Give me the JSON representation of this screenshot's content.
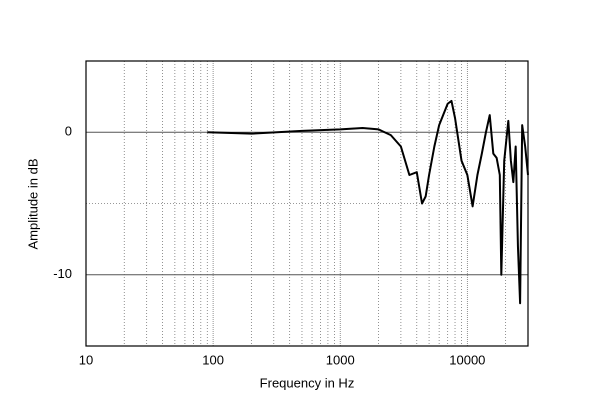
{
  "chart_data": {
    "type": "line",
    "xlabel": "Frequency in Hz",
    "ylabel": "Amplitude in dB",
    "xscale": "log",
    "xlim": [
      10,
      30000
    ],
    "ylim": [
      -15,
      5
    ],
    "xticks": [
      10,
      100,
      1000,
      10000
    ],
    "yticks": [
      -10,
      0
    ],
    "y_minor_ticks": [
      -5
    ],
    "grid": true,
    "color": "#000000",
    "x": [
      90,
      200,
      500,
      1000,
      1500,
      2000,
      2500,
      3000,
      3500,
      4000,
      4400,
      4700,
      5000,
      5500,
      6000,
      7000,
      7500,
      8000,
      9000,
      10000,
      11000,
      12000,
      13000,
      14000,
      15000,
      16000,
      17000,
      18000,
      18500,
      19500,
      21000,
      22000,
      23000,
      24000,
      25000,
      26000,
      27000,
      28500,
      30000
    ],
    "values": [
      0,
      -0.1,
      0.1,
      0.2,
      0.3,
      0.2,
      -0.2,
      -1,
      -3,
      -2.8,
      -5,
      -4.5,
      -3,
      -1,
      0.5,
      2,
      2.2,
      1,
      -2,
      -3,
      -5.2,
      -3,
      -1.5,
      0,
      1.2,
      -1.5,
      -1.8,
      -3,
      -10,
      -2,
      0.8,
      -2,
      -3.5,
      -1,
      -8,
      -12,
      0.5,
      -1,
      -3
    ]
  }
}
